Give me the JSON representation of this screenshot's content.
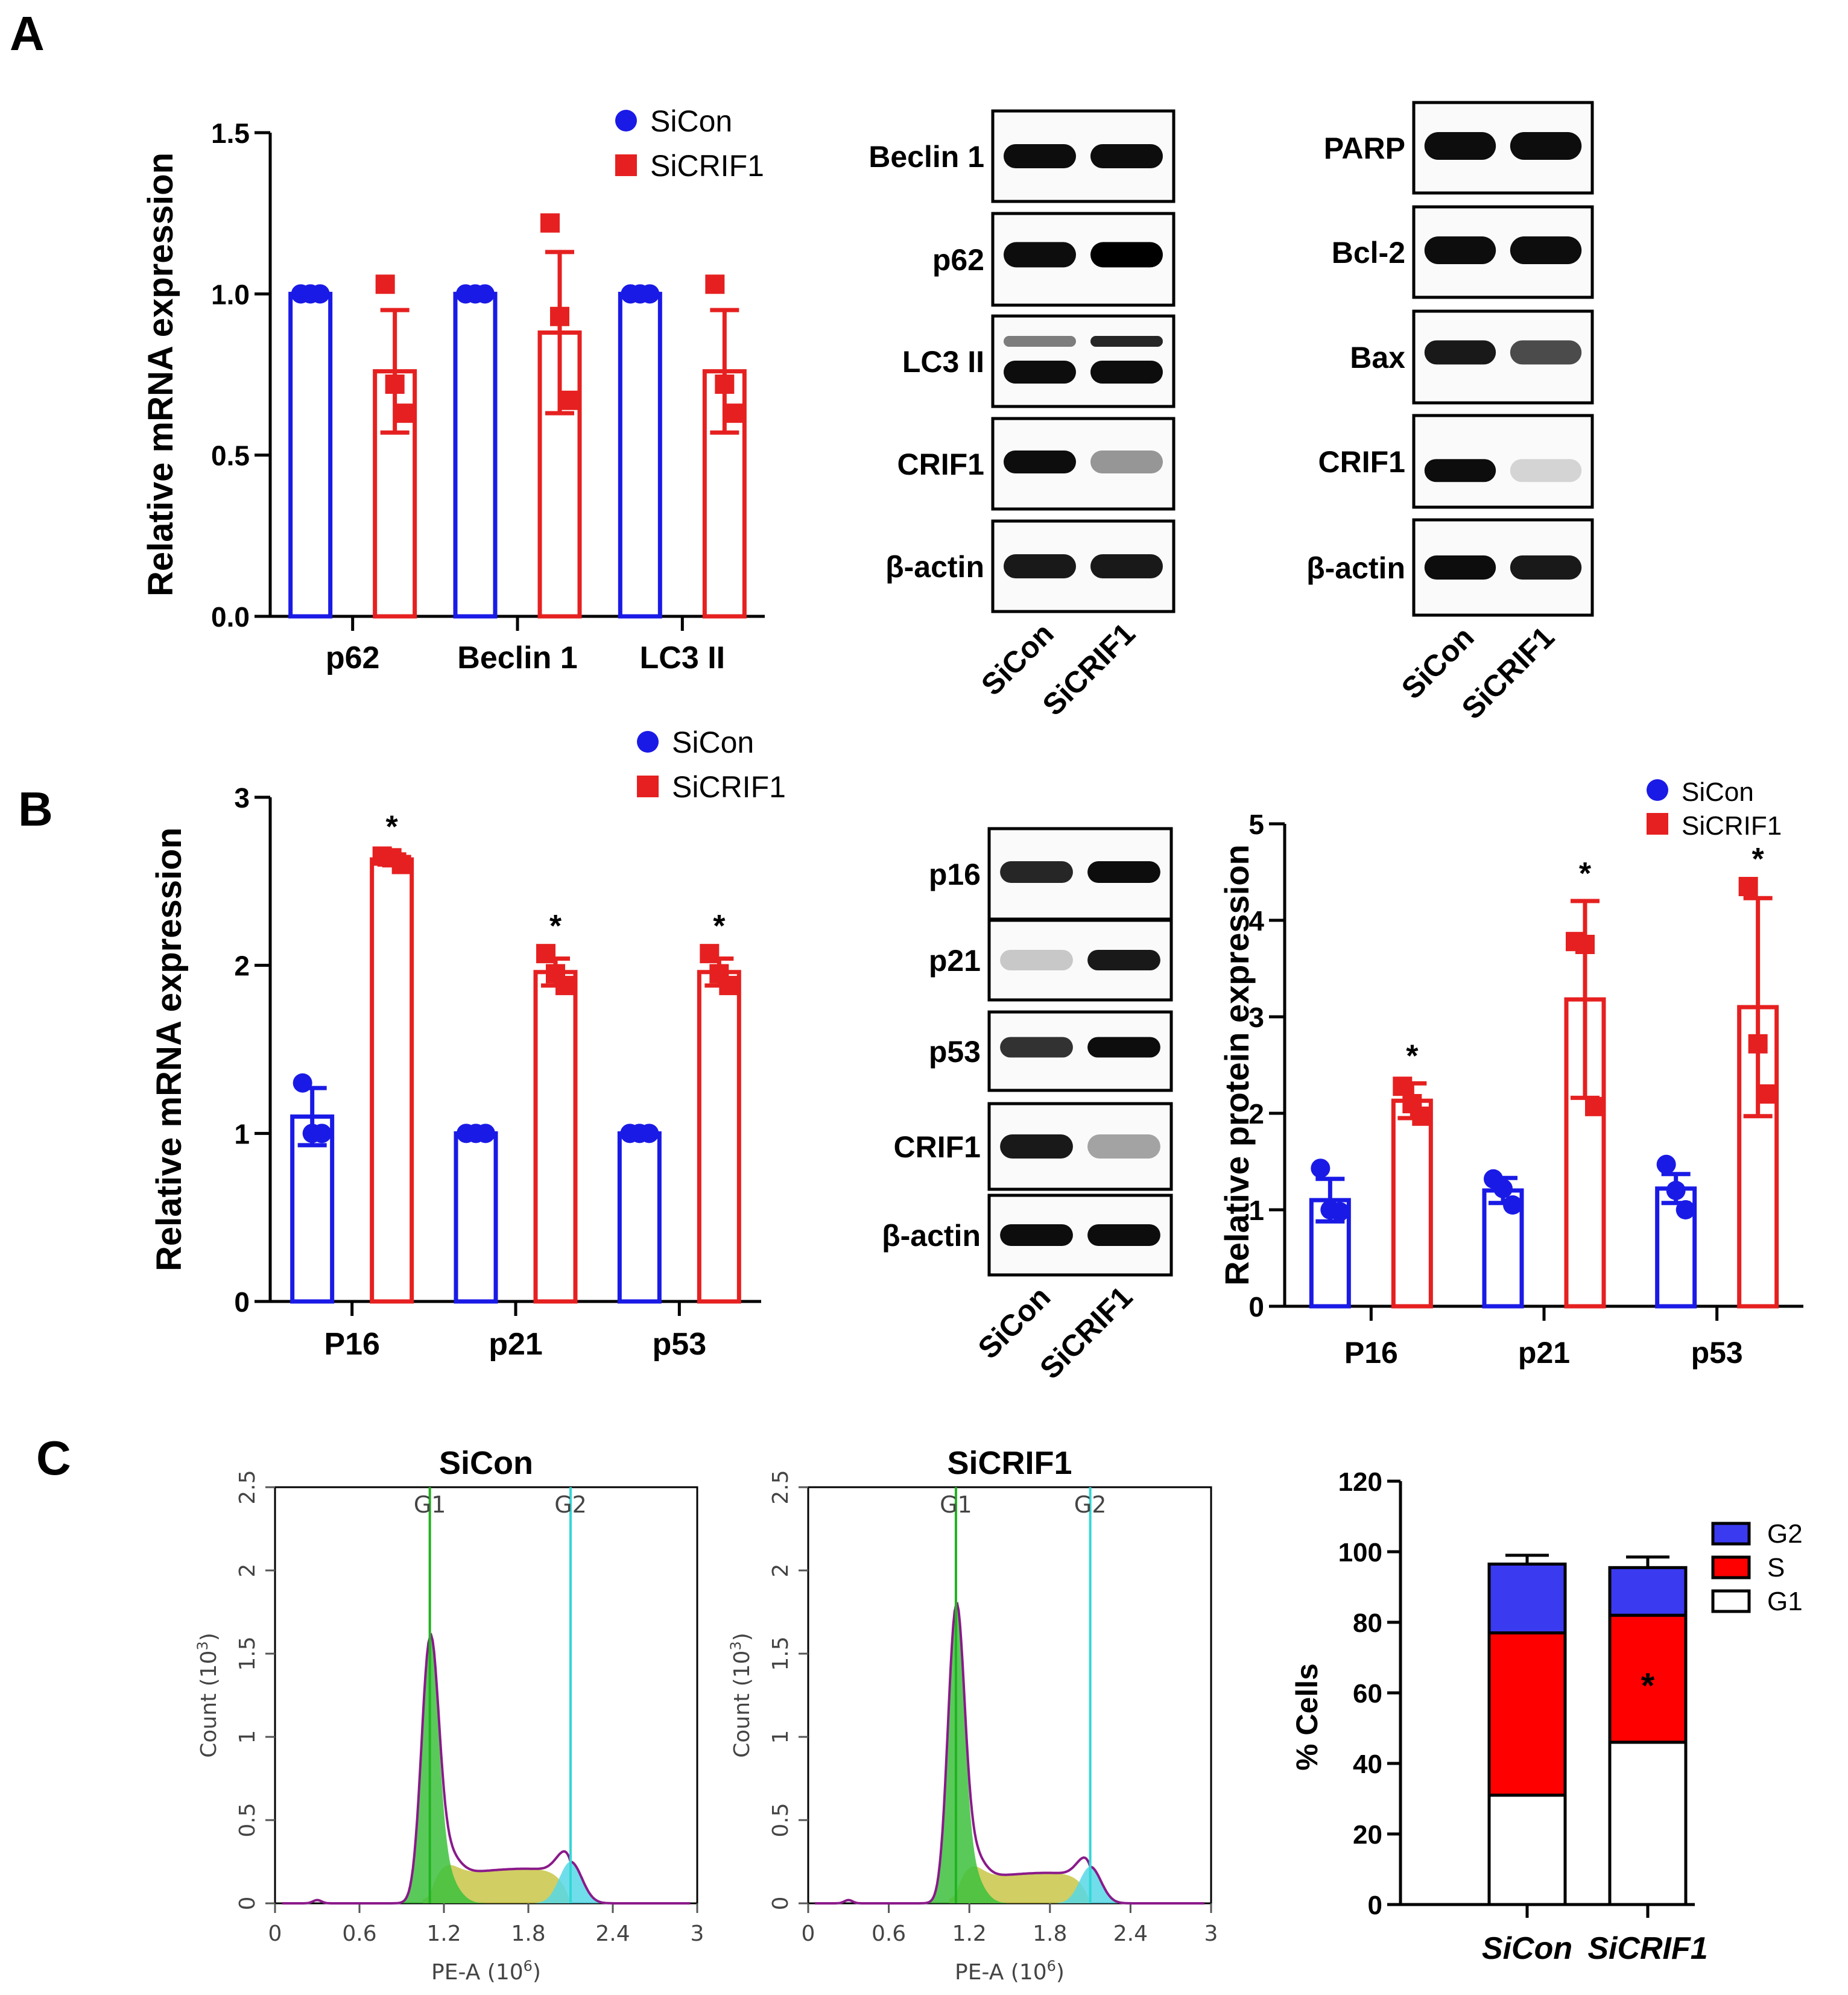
{
  "panel_labels": [
    "A",
    "B",
    "C"
  ],
  "chart_data": [
    {
      "id": "A-mrna",
      "type": "bar",
      "ylabel": "Relative mRNA expression",
      "ylim": [
        0,
        1.5
      ],
      "yticks": [
        "0.0",
        "0.5",
        "1.0",
        "1.5"
      ],
      "categories": [
        "p62",
        "Beclin 1",
        "LC3 II"
      ],
      "legend": [
        "SiCon",
        "SiCRIF1"
      ],
      "legend_position": "top-right",
      "series": [
        {
          "name": "SiCon",
          "color": "#1a1ae6",
          "marker": "circle",
          "values": [
            1.0,
            1.0,
            1.0
          ],
          "err": [
            0,
            0,
            0
          ],
          "points": [
            [
              1.0,
              1.0,
              1.0
            ],
            [
              1.0,
              1.0,
              1.0
            ],
            [
              1.0,
              1.0,
              1.0
            ]
          ]
        },
        {
          "name": "SiCRIF1",
          "color": "#e62020",
          "marker": "square",
          "values": [
            0.76,
            0.88,
            0.76
          ],
          "err": [
            0.19,
            0.25,
            0.19
          ],
          "points": [
            [
              1.03,
              0.72,
              0.63
            ],
            [
              1.22,
              0.93,
              0.67
            ],
            [
              1.03,
              0.72,
              0.63
            ]
          ]
        }
      ],
      "annotations": []
    },
    {
      "id": "B-mrna",
      "type": "bar",
      "ylabel": "Relative mRNA expression",
      "ylim": [
        0,
        3
      ],
      "yticks": [
        "0",
        "1",
        "2",
        "3"
      ],
      "categories": [
        "P16",
        "p21",
        "p53"
      ],
      "legend": [
        "SiCon",
        "SiCRIF1"
      ],
      "legend_position": "top",
      "series": [
        {
          "name": "SiCon",
          "color": "#1a1ae6",
          "marker": "circle",
          "values": [
            1.1,
            1.0,
            1.0
          ],
          "err": [
            0.17,
            0,
            0
          ],
          "points": [
            [
              1.3,
              1.0,
              1.0
            ],
            [
              1.0,
              1.0,
              1.0
            ],
            [
              1.0,
              1.0,
              1.0
            ]
          ]
        },
        {
          "name": "SiCRIF1",
          "color": "#e62020",
          "marker": "square",
          "values": [
            2.63,
            1.96,
            1.96
          ],
          "err": [
            0.03,
            0.08,
            0.08
          ],
          "points": [
            [
              2.65,
              2.64,
              2.6
            ],
            [
              2.07,
              1.95,
              1.88
            ],
            [
              2.07,
              1.95,
              1.88
            ]
          ]
        }
      ],
      "annotations": [
        "*",
        "*",
        "*"
      ]
    },
    {
      "id": "B-protein",
      "type": "bar",
      "ylabel": "Relative protein expression",
      "ylim": [
        0,
        5
      ],
      "yticks": [
        "0",
        "1",
        "2",
        "3",
        "4",
        "5"
      ],
      "categories": [
        "P16",
        "p21",
        "p53"
      ],
      "legend": [
        "SiCon",
        "SiCRIF1"
      ],
      "legend_position": "top-right",
      "series": [
        {
          "name": "SiCon",
          "color": "#1a1ae6",
          "marker": "circle",
          "values": [
            1.1,
            1.2,
            1.22
          ],
          "err": [
            0.22,
            0.13,
            0.15
          ],
          "points": [
            [
              1.43,
              1.0,
              0.98
            ],
            [
              1.32,
              1.22,
              1.05
            ],
            [
              1.47,
              1.2,
              1.0
            ]
          ]
        },
        {
          "name": "SiCRIF1",
          "color": "#e62020",
          "marker": "square",
          "values": [
            2.13,
            3.18,
            3.1
          ],
          "err": [
            0.18,
            1.02,
            1.13
          ],
          "points": [
            [
              2.28,
              2.1,
              1.97
            ],
            [
              3.78,
              3.75,
              2.07
            ],
            [
              4.35,
              2.72,
              2.2
            ]
          ]
        }
      ],
      "annotations": [
        "*",
        "*",
        "*"
      ]
    },
    {
      "id": "C-hist-sicon",
      "type": "area",
      "title": "SiCon",
      "xlabel": "PE-A (10",
      "xlabel_exp": "6",
      "ylabel": "Count (10",
      "ylabel_exp": "3",
      "xlim": [
        0,
        3
      ],
      "ylim": [
        0,
        2.5
      ],
      "xticks": [
        "0",
        "0.6",
        "1.2",
        "1.8",
        "2.4",
        "3"
      ],
      "yticks": [
        "0",
        "0.5",
        "1",
        "1.5",
        "2",
        "2.5"
      ],
      "gates": [
        {
          "label": "G1",
          "x": 1.1,
          "color": "#22b222"
        },
        {
          "label": "G2",
          "x": 2.1,
          "color": "#33d6d6"
        }
      ],
      "g1_peak": {
        "x": 1.1,
        "height": 1.5
      },
      "g2_peak": {
        "x": 2.1,
        "height": 0.25
      }
    },
    {
      "id": "C-hist-sicrif1",
      "type": "area",
      "title": "SiCRIF1",
      "xlabel": "PE-A (10",
      "xlabel_exp": "6",
      "ylabel": "Count (10",
      "ylabel_exp": "3",
      "xlim": [
        0,
        3
      ],
      "ylim": [
        0,
        2.5
      ],
      "xticks": [
        "0",
        "0.6",
        "1.2",
        "1.8",
        "2.4",
        "3"
      ],
      "yticks": [
        "0",
        "0.5",
        "1",
        "1.5",
        "2",
        "2.5"
      ],
      "gates": [
        {
          "label": "G1",
          "x": 1.1,
          "color": "#22b222"
        },
        {
          "label": "G2",
          "x": 2.1,
          "color": "#33d6d6"
        }
      ],
      "g1_peak": {
        "x": 1.1,
        "height": 1.68
      },
      "g2_peak": {
        "x": 2.1,
        "height": 0.22
      }
    },
    {
      "id": "C-stacked",
      "type": "bar",
      "stacked": true,
      "ylabel": "% Cells",
      "ylim": [
        0,
        120
      ],
      "yticks": [
        "0",
        "20",
        "40",
        "60",
        "80",
        "100",
        "120"
      ],
      "categories": [
        "SiCon",
        "SiCRIF1"
      ],
      "legend": [
        "G2",
        "S",
        "G1"
      ],
      "legend_position": "right",
      "series": [
        {
          "name": "G1",
          "color": "#ffffff",
          "values": [
            31,
            46
          ],
          "err": [
            0,
            0
          ]
        },
        {
          "name": "S",
          "color": "#ff0000",
          "values": [
            46,
            36
          ],
          "err": [
            2,
            2
          ]
        },
        {
          "name": "G2",
          "color": "#3a3af0",
          "values": [
            19.5,
            13.5
          ],
          "err": [
            2.5,
            3
          ]
        }
      ],
      "annotations": [
        "",
        "*"
      ]
    }
  ],
  "blots": [
    {
      "id": "blot-A1",
      "rows": [
        "Beclin 1",
        "p62",
        "LC3 II",
        "CRIF1",
        "β-actin"
      ],
      "lanes": [
        "SiCon",
        "SiCRIF1"
      ]
    },
    {
      "id": "blot-A2",
      "rows": [
        "PARP",
        "Bcl-2",
        "Bax",
        "CRIF1",
        "β-actin"
      ],
      "lanes": [
        "SiCon",
        "SiCRIF1"
      ]
    },
    {
      "id": "blot-B",
      "rows": [
        "p16",
        "p21",
        "p53",
        "CRIF1",
        "β-actin"
      ],
      "lanes": [
        "SiCon",
        "SiCRIF1"
      ]
    }
  ]
}
